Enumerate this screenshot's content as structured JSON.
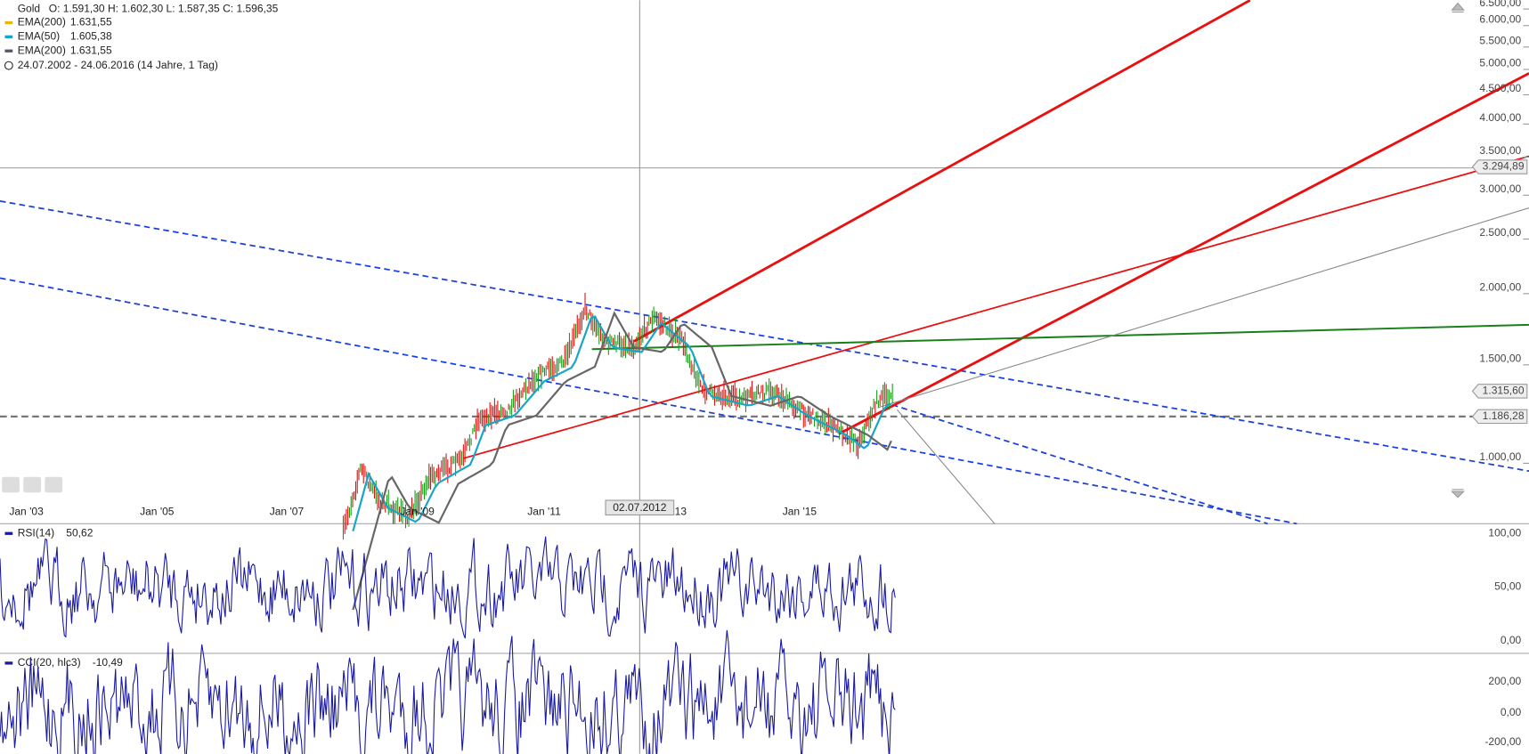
{
  "legend": {
    "instrument": "Gold",
    "ohlc": "O: 1.591,30   H: 1.602,30   L: 1.587,35   C: 1.596,35",
    "indicators": [
      {
        "name": "EMA(200)",
        "value": "1.631,55"
      },
      {
        "name": "EMA(50)",
        "value": "1.605,38"
      },
      {
        "name": "EMA(200)",
        "value": "1.631,55"
      }
    ],
    "range": "24.07.2002 - 24.06.2016 (14 Jahre, 1 Tag)"
  },
  "price_axis": [
    "6.500,00",
    "6.000,00",
    "5.500,00",
    "5.000,00",
    "4.500,00",
    "4.000,00",
    "3.500,00",
    "3.000,00",
    "2.500,00",
    "2.000,00",
    "1.500,00",
    "1.000,00"
  ],
  "price_tags": [
    "3.294,89",
    "1.315,60",
    "1.186,28"
  ],
  "time_axis": [
    "Jan '03",
    "Jan '05",
    "Jan '07",
    "Jan '09",
    "Jan '11",
    "'13",
    "Jan '15"
  ],
  "crosshair_date": "02.07.2012",
  "rsi": {
    "label": "RSI(14)",
    "value": "50,62",
    "axis": [
      "100,00",
      "50,00",
      "0,00"
    ]
  },
  "cci": {
    "label": "CCI(20, hlc3)",
    "value": "-10,49",
    "axis": [
      "200,00",
      "0,00",
      "-200,00"
    ]
  }
}
